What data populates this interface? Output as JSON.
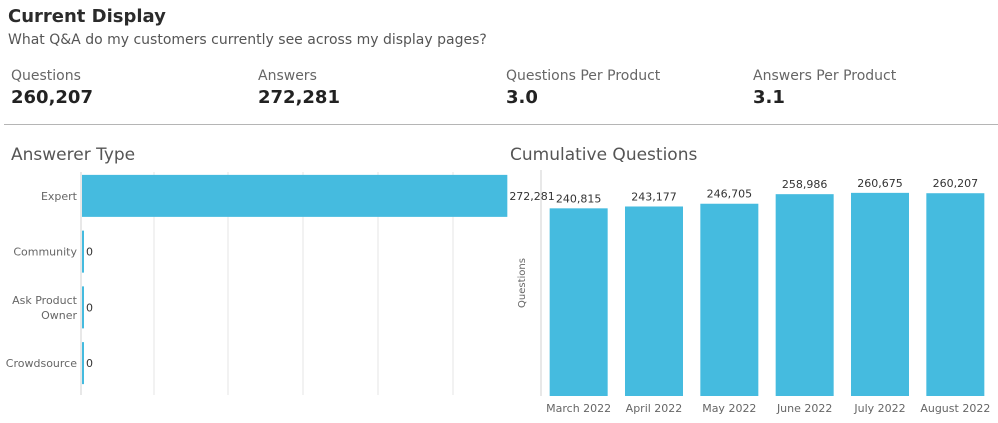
{
  "header": {
    "title": "Current Display",
    "subtitle": "What Q&A do my customers currently see across my display pages?"
  },
  "kpis": [
    {
      "label": "Questions",
      "value": "260,207"
    },
    {
      "label": "Answers",
      "value": "272,281"
    },
    {
      "label": "Questions Per Product",
      "value": "3.0"
    },
    {
      "label": "Answers Per Product",
      "value": "3.1"
    }
  ],
  "colors": {
    "bar": "#45bbdf",
    "grid": "#e6e6e6",
    "axis": "#d0d0d0"
  },
  "chart_data": [
    {
      "type": "bar",
      "orientation": "horizontal",
      "title": "Answerer Type",
      "categories": [
        "Expert",
        "Community",
        "Ask Product Owner",
        "Crowdsource"
      ],
      "category_lines": [
        [
          "Expert"
        ],
        [
          "Community"
        ],
        [
          "Ask Product",
          "Owner"
        ],
        [
          "Crowdsource"
        ]
      ],
      "values": [
        272281,
        0,
        0,
        0
      ],
      "value_labels": [
        "272,281",
        "0",
        "0",
        "0"
      ],
      "xlim": [
        0,
        290000
      ],
      "grid": true
    },
    {
      "type": "bar",
      "title": "Cumulative Questions",
      "ylabel": "Questions",
      "categories": [
        "March 2022",
        "April 2022",
        "May 2022",
        "June 2022",
        "July 2022",
        "August 2022"
      ],
      "values": [
        240815,
        243177,
        246705,
        258986,
        260675,
        260207
      ],
      "value_labels": [
        "240,815",
        "243,177",
        "246,705",
        "258,986",
        "260,675",
        "260,207"
      ],
      "ylim": [
        0,
        290000
      ],
      "grid": false
    }
  ]
}
